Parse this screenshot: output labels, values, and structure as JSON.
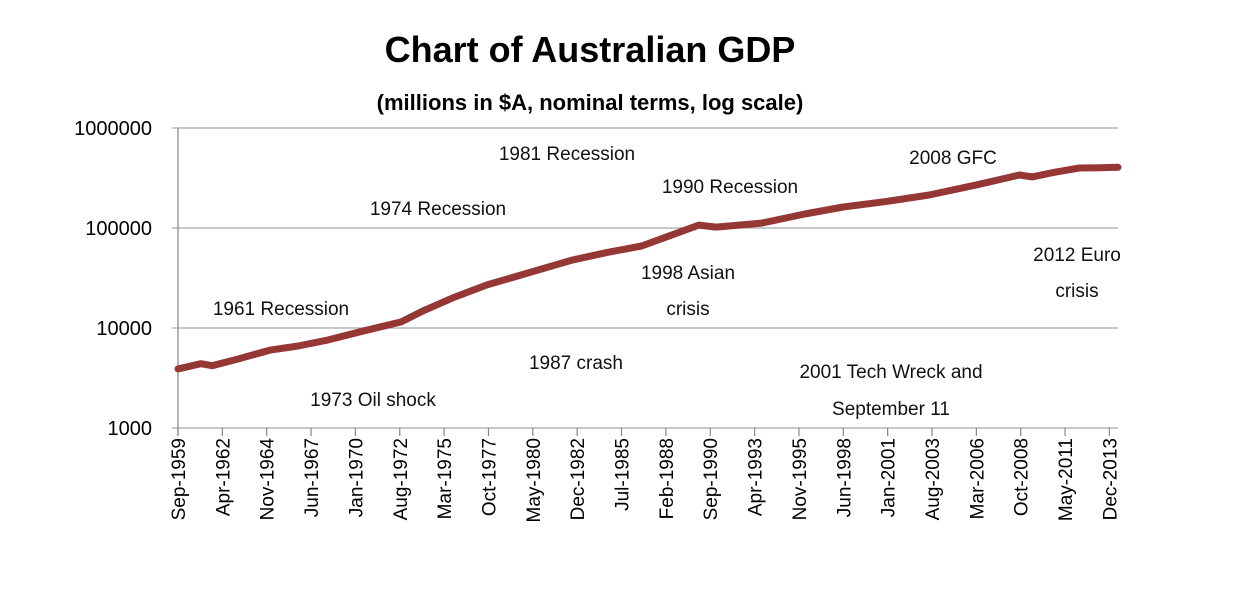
{
  "chart_data": {
    "type": "line",
    "title": "Chart of Australian GDP",
    "subtitle": "(millions in $A, nominal terms, log scale)",
    "xlabel": "",
    "ylabel": "",
    "y_scale": "log",
    "ylim": [
      1000,
      1000000
    ],
    "y_ticks": [
      "1000000",
      "100000",
      "10000",
      "1000"
    ],
    "y_tick_values": [
      1000000,
      100000,
      10000,
      1000
    ],
    "xlim": [
      "1959-09",
      "2014-06"
    ],
    "x_ticks": [
      "Sep-1959",
      "Apr-1962",
      "Nov-1964",
      "Jun-1967",
      "Jan-1970",
      "Aug-1972",
      "Mar-1975",
      "Oct-1977",
      "May-1980",
      "Dec-1982",
      "Jul-1985",
      "Feb-1988",
      "Sep-1990",
      "Apr-1993",
      "Nov-1995",
      "Jun-1998",
      "Jan-2001",
      "Aug-2003",
      "Mar-2006",
      "Oct-2008",
      "May-2011",
      "Dec-2013"
    ],
    "grid": "horizontal",
    "line_color": "#953735",
    "series": [
      {
        "points": [
          [
            "1959-09",
            3900
          ],
          [
            "1961-01",
            4400
          ],
          [
            "1961-09",
            4200
          ],
          [
            "1963-03",
            4900
          ],
          [
            "1965-01",
            6000
          ],
          [
            "1966-09",
            6600
          ],
          [
            "1968-06",
            7600
          ],
          [
            "1970-06",
            9300
          ],
          [
            "1972-09",
            11500
          ],
          [
            "1974-01",
            15000
          ],
          [
            "1975-09",
            20000
          ],
          [
            "1977-09",
            27000
          ],
          [
            "1980-03",
            36000
          ],
          [
            "1982-09",
            48000
          ],
          [
            "1984-09",
            57000
          ],
          [
            "1986-09",
            66000
          ],
          [
            "1988-06",
            85000
          ],
          [
            "1990-01",
            107000
          ],
          [
            "1991-01",
            102000
          ],
          [
            "1993-09",
            112000
          ],
          [
            "1996-03",
            138000
          ],
          [
            "1998-06",
            162000
          ],
          [
            "2001-01",
            185000
          ],
          [
            "2003-06",
            214000
          ],
          [
            "2006-03",
            270000
          ],
          [
            "2008-09",
            339000
          ],
          [
            "2009-06",
            324000
          ],
          [
            "2010-09",
            360000
          ],
          [
            "2012-03",
            398000
          ],
          [
            "2013-06",
            400000
          ],
          [
            "2014-06",
            405000
          ]
        ]
      }
    ],
    "annotations": [
      {
        "lines": [
          "1981 Recession"
        ]
      },
      {
        "lines": [
          "1974 Recession"
        ]
      },
      {
        "lines": [
          "2008 GFC"
        ]
      },
      {
        "lines": [
          "1990 Recession"
        ]
      },
      {
        "lines": [
          "1998 Asian",
          "crisis"
        ]
      },
      {
        "lines": [
          "2012 Euro",
          "crisis"
        ]
      },
      {
        "lines": [
          "1961 Recession"
        ]
      },
      {
        "lines": [
          "1987 crash"
        ]
      },
      {
        "lines": [
          "2001 Tech Wreck and",
          "September 11"
        ]
      },
      {
        "lines": [
          "1973 Oil shock"
        ]
      }
    ]
  }
}
